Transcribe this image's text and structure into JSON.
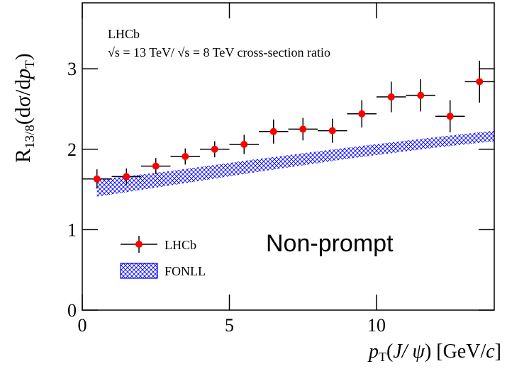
{
  "chart_data": {
    "type": "errorbar",
    "ylabel": [
      "R",
      "13/8",
      "(dσ/d",
      "p",
      "T",
      ")"
    ],
    "xlabel": [
      "p",
      "T",
      "(",
      "J/ ψ",
      ") [GeV/",
      "c",
      "]"
    ],
    "annotations": [
      "LHCb",
      "√s = 13 TeV/ √s = 8 TeV cross-section ratio",
      "Non-prompt"
    ],
    "xlim": [
      0,
      14
    ],
    "ylim": [
      0,
      3.82
    ],
    "xticks": [
      0,
      5,
      10
    ],
    "yticks": [
      0,
      1,
      2,
      3
    ],
    "series": [
      {
        "name": "LHCb",
        "color": "#ff0000",
        "x": [
          0.5,
          1.5,
          2.5,
          3.5,
          4.5,
          5.5,
          6.5,
          7.5,
          8.5,
          9.5,
          10.5,
          11.5,
          12.5,
          13.5
        ],
        "values": [
          1.63,
          1.66,
          1.79,
          1.91,
          2.0,
          2.06,
          2.22,
          2.25,
          2.23,
          2.44,
          2.65,
          2.67,
          2.41,
          2.84
        ],
        "xerr": [
          0.5,
          0.5,
          0.5,
          0.5,
          0.5,
          0.5,
          0.5,
          0.5,
          0.5,
          0.5,
          0.5,
          0.5,
          0.5,
          0.5
        ],
        "yerr": [
          0.12,
          0.1,
          0.1,
          0.1,
          0.1,
          0.12,
          0.15,
          0.14,
          0.15,
          0.17,
          0.19,
          0.2,
          0.2,
          0.26
        ]
      },
      {
        "name": "FONLL",
        "color": "#0000ff",
        "x": [
          0.5,
          3,
          6,
          9,
          12,
          14
        ],
        "lower": [
          1.41,
          1.55,
          1.72,
          1.88,
          2.02,
          2.1
        ],
        "upper": [
          1.62,
          1.73,
          1.88,
          2.02,
          2.15,
          2.23
        ]
      }
    ]
  }
}
